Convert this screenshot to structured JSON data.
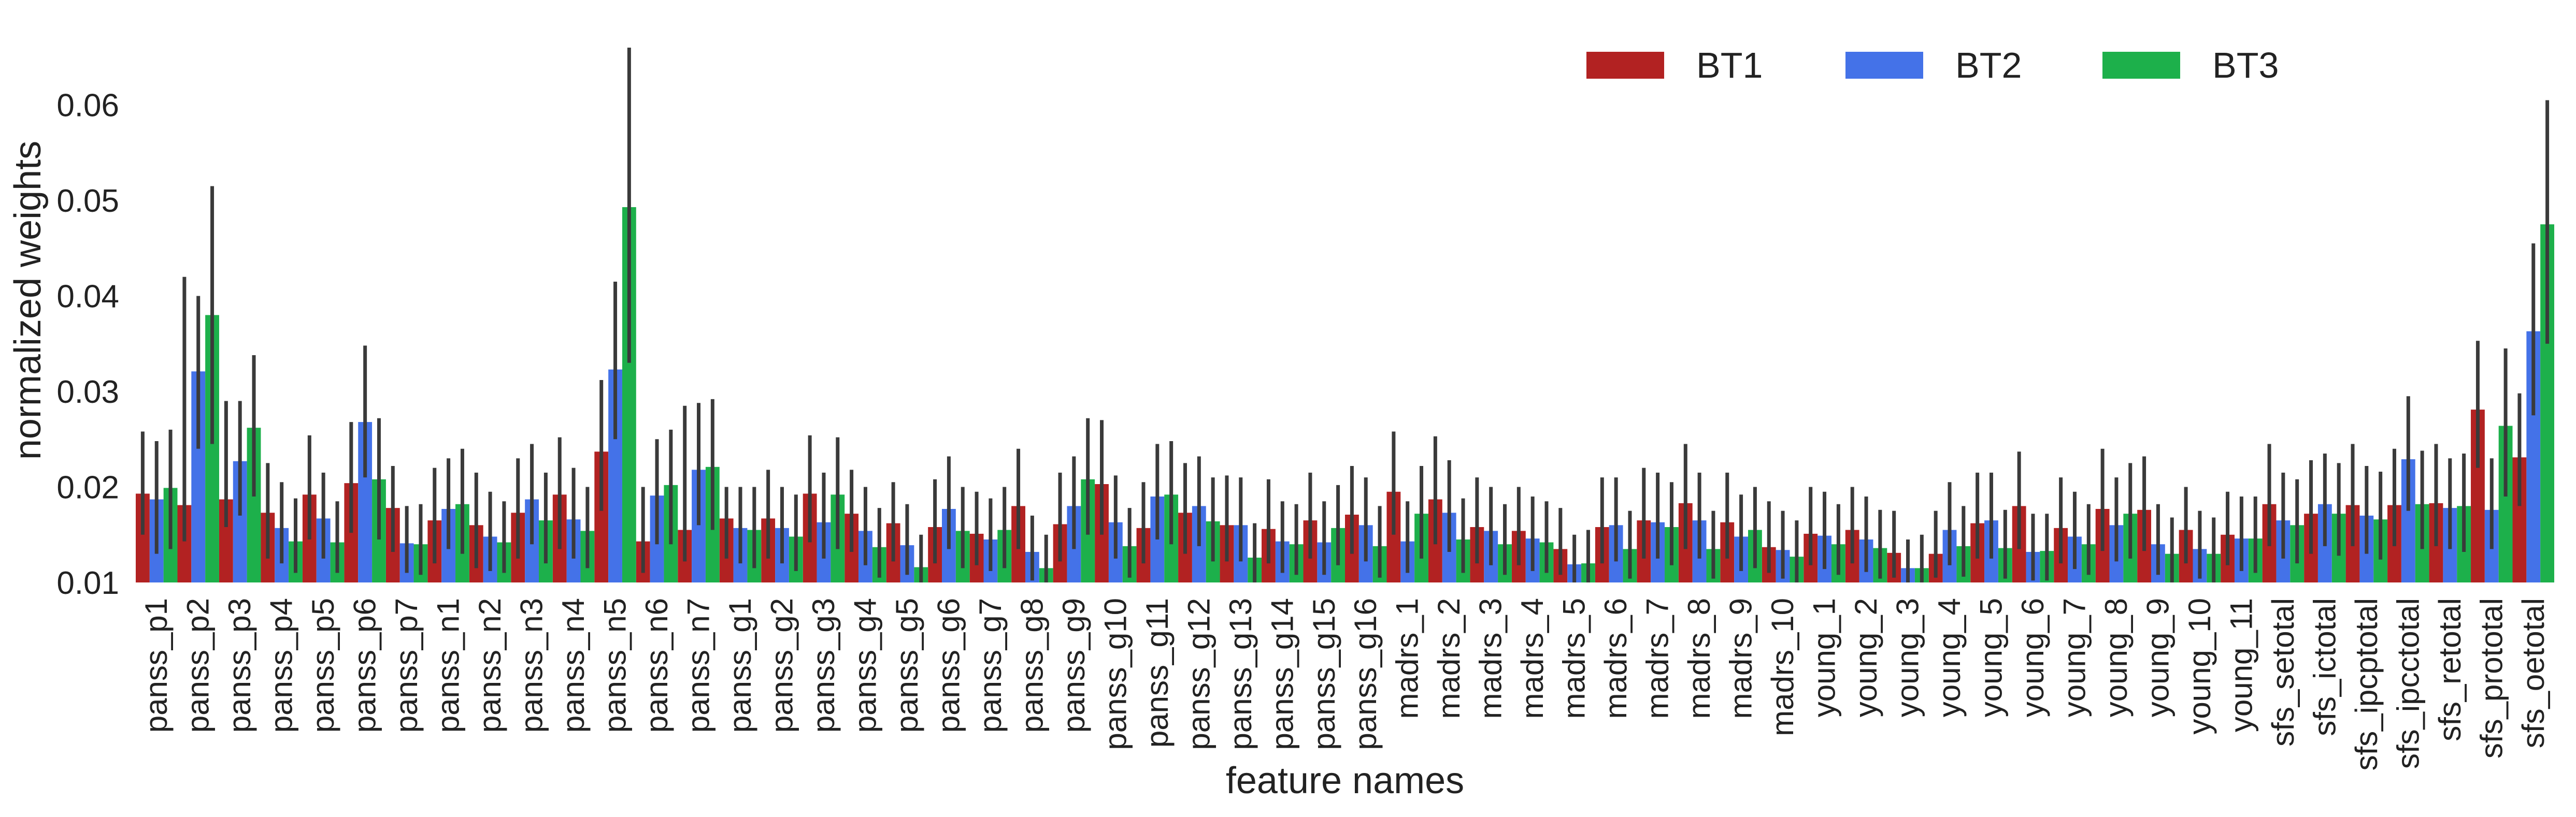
{
  "chart_data": {
    "type": "bar",
    "title": "",
    "xlabel": "feature names",
    "ylabel": "normalized weights",
    "ylim": [
      0.01,
      0.066
    ],
    "yticks": [
      0.01,
      0.02,
      0.03,
      0.04,
      0.05,
      0.06
    ],
    "ytick_labels": [
      "0.01",
      "0.02",
      "0.03",
      "0.04",
      "0.05",
      "0.06"
    ],
    "grid": false,
    "legend_position": "top-right",
    "categories": [
      "panss_p1",
      "panss_p2",
      "panss_p3",
      "panss_p4",
      "panss_p5",
      "panss_p6",
      "panss_p7",
      "panss_n1",
      "panss_n2",
      "panss_n3",
      "panss_n4",
      "panss_n5",
      "panss_n6",
      "panss_n7",
      "panss_g1",
      "panss_g2",
      "panss_g3",
      "panss_g4",
      "panss_g5",
      "panss_g6",
      "panss_g7",
      "panss_g8",
      "panss_g9",
      "panss_g10",
      "panss_g11",
      "panss_g12",
      "panss_g13",
      "panss_g14",
      "panss_g15",
      "panss_g16",
      "madrs_1",
      "madrs_2",
      "madrs_3",
      "madrs_4",
      "madrs_5",
      "madrs_6",
      "madrs_7",
      "madrs_8",
      "madrs_9",
      "madrs_10",
      "young_1",
      "young_2",
      "young_3",
      "young_4",
      "young_5",
      "young_6",
      "young_7",
      "young_8",
      "young_9",
      "young_10",
      "young_11",
      "sfs_setotal",
      "sfs_ictotal",
      "sfs_ipcptotal",
      "sfs_ipcctotal",
      "sfs_retotal",
      "sfs_prototal",
      "sfs_oetotal"
    ],
    "series": [
      {
        "name": "BT1",
        "color": "#b22222",
        "values": [
          0.0193,
          0.0181,
          0.0187,
          0.0173,
          0.0192,
          0.0204,
          0.0178,
          0.0165,
          0.016,
          0.0173,
          0.0192,
          0.0237,
          0.0143,
          0.0155,
          0.0167,
          0.0167,
          0.0193,
          0.0172,
          0.0162,
          0.0158,
          0.0151,
          0.018,
          0.0161,
          0.0203,
          0.0157,
          0.0173,
          0.016,
          0.0156,
          0.0165,
          0.0171,
          0.0195,
          0.0187,
          0.0158,
          0.0154,
          0.0135,
          0.0158,
          0.0165,
          0.0183,
          0.0163,
          0.0137,
          0.0151,
          0.0155,
          0.0131,
          0.013,
          0.0162,
          0.018,
          0.0157,
          0.0177,
          0.0176,
          0.0155,
          0.015,
          0.0182,
          0.0172,
          0.0181,
          0.0181,
          0.0183,
          0.0281,
          0.0231
        ]
      },
      {
        "name": "BT2",
        "color": "#4472e8",
        "values": [
          0.0187,
          0.0321,
          0.0227,
          0.0157,
          0.0167,
          0.0268,
          0.0141,
          0.0177,
          0.0148,
          0.0187,
          0.0166,
          0.0323,
          0.0191,
          0.0218,
          0.0157,
          0.0157,
          0.0163,
          0.0154,
          0.0139,
          0.0177,
          0.0145,
          0.0132,
          0.018,
          0.0163,
          0.019,
          0.018,
          0.016,
          0.0143,
          0.0142,
          0.016,
          0.0143,
          0.0173,
          0.0154,
          0.0146,
          0.0119,
          0.016,
          0.0163,
          0.0165,
          0.0148,
          0.0134,
          0.0149,
          0.0145,
          0.0115,
          0.0155,
          0.0165,
          0.0132,
          0.0148,
          0.016,
          0.014,
          0.0135,
          0.0146,
          0.0165,
          0.0182,
          0.017,
          0.0229,
          0.0178,
          0.0176,
          0.0363
        ]
      },
      {
        "name": "BT3",
        "color": "#1db04b",
        "values": [
          0.0199,
          0.038,
          0.0262,
          0.0143,
          0.0142,
          0.0208,
          0.014,
          0.0182,
          0.0142,
          0.0165,
          0.0154,
          0.0493,
          0.0202,
          0.0221,
          0.0155,
          0.0148,
          0.0192,
          0.0137,
          0.0116,
          0.0154,
          0.0155,
          0.0115,
          0.0208,
          0.0138,
          0.0192,
          0.0164,
          0.0126,
          0.014,
          0.0157,
          0.0138,
          0.0172,
          0.0145,
          0.014,
          0.0142,
          0.012,
          0.0135,
          0.0158,
          0.0135,
          0.0155,
          0.0127,
          0.014,
          0.0136,
          0.0115,
          0.0138,
          0.0136,
          0.0133,
          0.014,
          0.0172,
          0.013,
          0.013,
          0.0146,
          0.016,
          0.0172,
          0.0166,
          0.0182,
          0.018,
          0.0264,
          0.0475
        ]
      }
    ],
    "errors": [
      [
        [
          0.015,
          0.0258
        ],
        [
          0.0143,
          0.042
        ],
        [
          0.0158,
          0.029
        ],
        [
          0.0125,
          0.0225
        ],
        [
          0.0145,
          0.0254
        ],
        [
          0.0152,
          0.0268
        ],
        [
          0.0132,
          0.0222
        ],
        [
          0.012,
          0.022
        ],
        [
          0.0115,
          0.0215
        ],
        [
          0.0125,
          0.023
        ],
        [
          0.0135,
          0.0252
        ],
        [
          0.0175,
          0.0312
        ],
        [
          0.011,
          0.02
        ],
        [
          0.0122,
          0.0285
        ],
        [
          0.0125,
          0.02
        ],
        [
          0.0125,
          0.0218
        ],
        [
          0.0142,
          0.0254
        ],
        [
          0.0132,
          0.0218
        ],
        [
          0.0122,
          0.0205
        ],
        [
          0.012,
          0.0208
        ],
        [
          0.0118,
          0.0195
        ],
        [
          0.0135,
          0.024
        ],
        [
          0.0122,
          0.0215
        ],
        [
          0.015,
          0.027
        ],
        [
          0.012,
          0.0205
        ],
        [
          0.013,
          0.0225
        ],
        [
          0.0122,
          0.0212
        ],
        [
          0.012,
          0.0208
        ],
        [
          0.0125,
          0.0215
        ],
        [
          0.013,
          0.0222
        ],
        [
          0.015,
          0.0258
        ],
        [
          0.014,
          0.0253
        ],
        [
          0.012,
          0.021
        ],
        [
          0.0118,
          0.02
        ],
        [
          0.0108,
          0.0178
        ],
        [
          0.012,
          0.021
        ],
        [
          0.0125,
          0.022
        ],
        [
          0.0135,
          0.0245
        ],
        [
          0.0125,
          0.0215
        ],
        [
          0.011,
          0.0185
        ],
        [
          0.0118,
          0.02
        ],
        [
          0.012,
          0.02
        ],
        [
          0.0105,
          0.0175
        ],
        [
          0.0105,
          0.0175
        ],
        [
          0.0125,
          0.0215
        ],
        [
          0.0135,
          0.0237
        ],
        [
          0.012,
          0.021
        ],
        [
          0.0133,
          0.024
        ],
        [
          0.0133,
          0.0232
        ],
        [
          0.012,
          0.02
        ],
        [
          0.0118,
          0.0195
        ],
        [
          0.0138,
          0.0245
        ],
        [
          0.013,
          0.0228
        ],
        [
          0.0138,
          0.0245
        ],
        [
          0.0138,
          0.024
        ],
        [
          0.0138,
          0.0245
        ],
        [
          0.022,
          0.0353
        ],
        [
          0.018,
          0.0298
        ]
      ],
      [
        [
          0.013,
          0.0248
        ],
        [
          0.024,
          0.04
        ],
        [
          0.017,
          0.029
        ],
        [
          0.012,
          0.0205
        ],
        [
          0.0125,
          0.0215
        ],
        [
          0.021,
          0.0348
        ],
        [
          0.011,
          0.018
        ],
        [
          0.0135,
          0.023
        ],
        [
          0.0112,
          0.0195
        ],
        [
          0.014,
          0.0245
        ],
        [
          0.0125,
          0.022
        ],
        [
          0.025,
          0.0415
        ],
        [
          0.014,
          0.025
        ],
        [
          0.016,
          0.0288
        ],
        [
          0.012,
          0.02
        ],
        [
          0.012,
          0.02
        ],
        [
          0.0125,
          0.0215
        ],
        [
          0.0118,
          0.02
        ],
        [
          0.0108,
          0.0182
        ],
        [
          0.0135,
          0.0232
        ],
        [
          0.0112,
          0.0188
        ],
        [
          0.0102,
          0.017
        ],
        [
          0.0135,
          0.0232
        ],
        [
          0.0125,
          0.0212
        ],
        [
          0.0145,
          0.0245
        ],
        [
          0.0138,
          0.0232
        ],
        [
          0.0122,
          0.021
        ],
        [
          0.011,
          0.0185
        ],
        [
          0.0108,
          0.0185
        ],
        [
          0.0122,
          0.021
        ],
        [
          0.011,
          0.0185
        ],
        [
          0.0132,
          0.0228
        ],
        [
          0.0118,
          0.02
        ],
        [
          0.0112,
          0.019
        ],
        [
          0.01,
          0.015
        ],
        [
          0.0122,
          0.021
        ],
        [
          0.0125,
          0.0215
        ],
        [
          0.0125,
          0.0215
        ],
        [
          0.0112,
          0.0192
        ],
        [
          0.0104,
          0.0175
        ],
        [
          0.0114,
          0.0195
        ],
        [
          0.0111,
          0.019
        ],
        [
          0.01,
          0.0145
        ],
        [
          0.0118,
          0.0205
        ],
        [
          0.0125,
          0.0215
        ],
        [
          0.0102,
          0.0172
        ],
        [
          0.0114,
          0.0195
        ],
        [
          0.0122,
          0.021
        ],
        [
          0.0108,
          0.0182
        ],
        [
          0.0104,
          0.0175
        ],
        [
          0.0112,
          0.019
        ],
        [
          0.0125,
          0.0215
        ],
        [
          0.0138,
          0.0235
        ],
        [
          0.013,
          0.0222
        ],
        [
          0.0175,
          0.0295
        ],
        [
          0.0135,
          0.023
        ],
        [
          0.0135,
          0.023
        ],
        [
          0.0275,
          0.0455
        ]
      ],
      [
        [
          0.0135,
          0.026
        ],
        [
          0.0245,
          0.0515
        ],
        [
          0.019,
          0.0338
        ],
        [
          0.011,
          0.0188
        ],
        [
          0.011,
          0.0185
        ],
        [
          0.0145,
          0.0272
        ],
        [
          0.0108,
          0.0182
        ],
        [
          0.013,
          0.024
        ],
        [
          0.011,
          0.0185
        ],
        [
          0.012,
          0.0215
        ],
        [
          0.0115,
          0.02
        ],
        [
          0.033,
          0.066
        ],
        [
          0.014,
          0.026
        ],
        [
          0.0155,
          0.0292
        ],
        [
          0.0115,
          0.02
        ],
        [
          0.0112,
          0.0192
        ],
        [
          0.0135,
          0.0252
        ],
        [
          0.0105,
          0.0178
        ],
        [
          0.01,
          0.015
        ],
        [
          0.0115,
          0.02
        ],
        [
          0.0115,
          0.02
        ],
        [
          0.01,
          0.015
        ],
        [
          0.015,
          0.0272
        ],
        [
          0.0105,
          0.0178
        ],
        [
          0.014,
          0.0248
        ],
        [
          0.0122,
          0.021
        ],
        [
          0.01,
          0.0162
        ],
        [
          0.0108,
          0.0182
        ],
        [
          0.0118,
          0.0202
        ],
        [
          0.0105,
          0.018
        ],
        [
          0.0125,
          0.0222
        ],
        [
          0.011,
          0.0188
        ],
        [
          0.0108,
          0.0182
        ],
        [
          0.011,
          0.0185
        ],
        [
          0.01,
          0.0155
        ],
        [
          0.0104,
          0.0175
        ],
        [
          0.0118,
          0.0205
        ],
        [
          0.0104,
          0.0175
        ],
        [
          0.0115,
          0.02
        ],
        [
          0.01,
          0.0165
        ],
        [
          0.0108,
          0.0182
        ],
        [
          0.0104,
          0.0176
        ],
        [
          0.01,
          0.015
        ],
        [
          0.0106,
          0.018
        ],
        [
          0.0104,
          0.0176
        ],
        [
          0.0102,
          0.0172
        ],
        [
          0.0108,
          0.0182
        ],
        [
          0.0125,
          0.0225
        ],
        [
          0.01,
          0.0168
        ],
        [
          0.01,
          0.0168
        ],
        [
          0.011,
          0.019
        ],
        [
          0.012,
          0.0208
        ],
        [
          0.0128,
          0.0225
        ],
        [
          0.0124,
          0.0216
        ],
        [
          0.0135,
          0.0238
        ],
        [
          0.0132,
          0.0235
        ],
        [
          0.019,
          0.0345
        ],
        [
          0.035,
          0.0605
        ]
      ]
    ]
  }
}
